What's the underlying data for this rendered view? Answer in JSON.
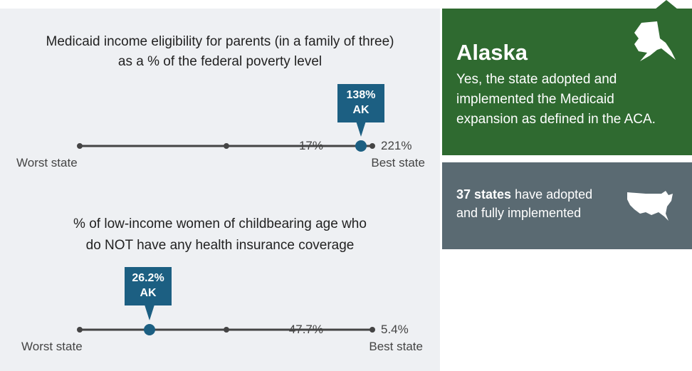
{
  "panels": [
    {
      "title_lines": [
        "Medicaid income eligibility for parents (in a family of three)",
        "as a % of the federal poverty level"
      ],
      "callout": {
        "value": "138%",
        "state": "AK"
      },
      "worst": {
        "value": "17%",
        "label": "Worst state"
      },
      "best": {
        "value": "221%",
        "label": "Best state"
      }
    },
    {
      "title_lines": [
        "% of low-income women of childbearing age who",
        "do NOT have any health insurance coverage"
      ],
      "callout": {
        "value": "26.2%",
        "state": "AK"
      },
      "worst": {
        "value": "47.7%",
        "label": "Worst state"
      },
      "best": {
        "value": "5.4%",
        "label": "Best state"
      }
    }
  ],
  "state_card": {
    "name": "Alaska",
    "lines": [
      "Yes, the state adopted and",
      "implemented the Medicaid",
      "expansion as defined in the ACA."
    ]
  },
  "summary": {
    "bold": "37 states",
    "lines": [
      "have adopted",
      "and fully implemented"
    ]
  }
}
